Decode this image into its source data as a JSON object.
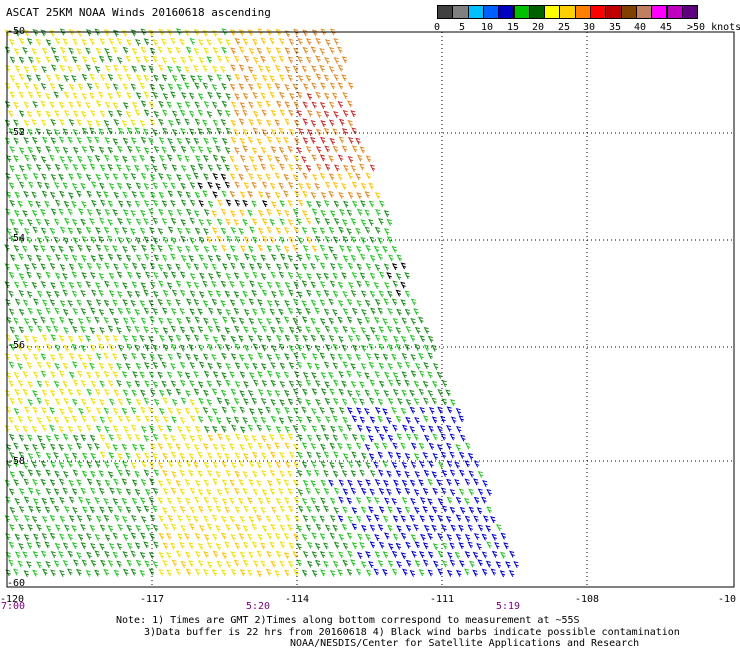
{
  "title": "ASCAT 25KM NOAA Winds 20160618 ascending",
  "legend": {
    "colors": [
      "#404040",
      "#808080",
      "#00c0ff",
      "#0060ff",
      "#0000c0",
      "#00c000",
      "#006000",
      "#ffff00",
      "#ffd000",
      "#ff8000",
      "#ff0000",
      "#c00000",
      "#804000",
      "#c08060",
      "#ff00ff",
      "#c000c0",
      "#600080"
    ],
    "labels": [
      "0",
      "5",
      "10",
      "15",
      "20",
      "25",
      "30",
      "35",
      "40",
      "45",
      ">50 knots"
    ]
  },
  "map": {
    "lon_range": [
      -120,
      -105
    ],
    "lat_range": [
      -50,
      -60
    ],
    "lon_labels": [
      "-120",
      "-117",
      "-114",
      "-111",
      "-108",
      "-10"
    ],
    "lat_labels": [
      "-50",
      "-52",
      "-54",
      "-56",
      "-58",
      "-60"
    ],
    "time_labels": [
      "7:00",
      "5:20",
      "5:19"
    ],
    "wind_colors": {
      "dark_green": "#1a8c1a",
      "green": "#22c422",
      "yellow": "#f0e000",
      "gold": "#ffc400",
      "orange": "#e08a20",
      "red": "#c82828",
      "blue": "#0000cc",
      "black": "#000000"
    }
  },
  "notes": {
    "line1": "Note: 1) Times are GMT 2)Times along bottom correspond to measurement at ~55S",
    "line2": "3)Data buffer is 22 hrs from 20160618 4) Black wind barbs indicate possible contamination",
    "line3": "NOAA/NESDIS/Center for Satellite Applications and Research"
  }
}
